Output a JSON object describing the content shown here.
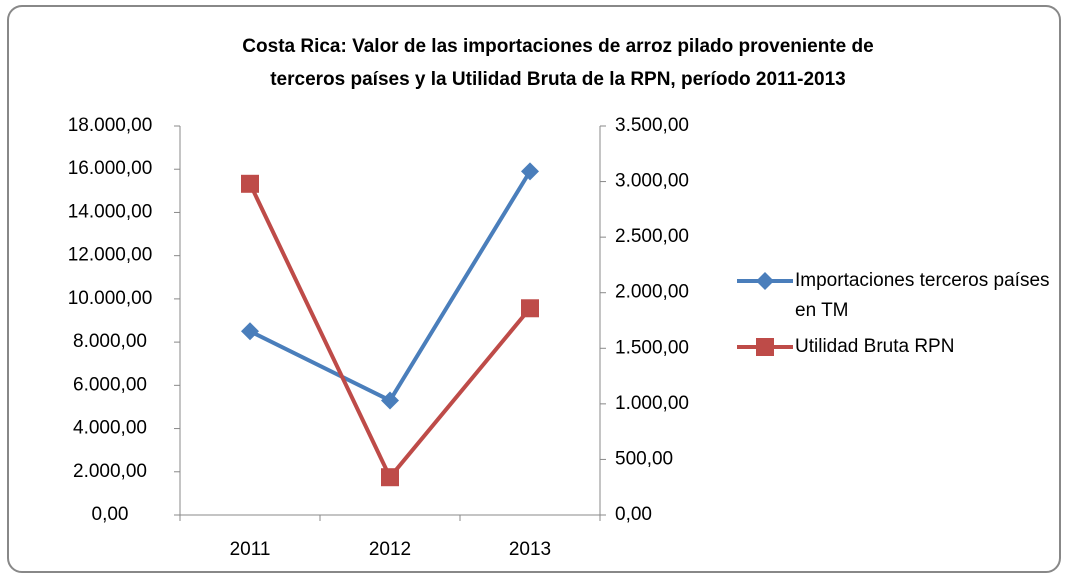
{
  "chart_data": {
    "type": "line",
    "title": [
      "Costa Rica:  Valor de las importaciones de arroz pilado proveniente de",
      "terceros países y la Utilidad Bruta de la RPN, período 2011-2013"
    ],
    "categories": [
      "2011",
      "2012",
      "2013"
    ],
    "series": [
      {
        "name": "Importaciones terceros países en TM",
        "color": "#4a7ebb",
        "marker": "diamond",
        "values": [
          8500,
          5300,
          15900
        ]
      },
      {
        "name": "Utilidad  Bruta RPN",
        "color": "#be4b48",
        "marker": "square",
        "axis": "y2",
        "values": [
          2980,
          340,
          1860
        ]
      }
    ],
    "ylim": [
      0,
      18000
    ],
    "yticks": [
      {
        "value": 0,
        "label": "0,00"
      },
      {
        "value": 2000,
        "label": "2.000,00"
      },
      {
        "value": 4000,
        "label": "4.000,00"
      },
      {
        "value": 6000,
        "label": "6.000,00"
      },
      {
        "value": 8000,
        "label": "8.000,00"
      },
      {
        "value": 10000,
        "label": "10.000,00"
      },
      {
        "value": 12000,
        "label": "12.000,00"
      },
      {
        "value": 14000,
        "label": "14.000,00"
      },
      {
        "value": 16000,
        "label": "16.000,00"
      },
      {
        "value": 18000,
        "label": "18.000,00"
      }
    ],
    "y2lim": [
      0,
      3500
    ],
    "y2ticks": [
      {
        "value": 0,
        "label": "0,00"
      },
      {
        "value": 500,
        "label": "500,00"
      },
      {
        "value": 1000,
        "label": "1.000,00"
      },
      {
        "value": 1500,
        "label": "1.500,00"
      },
      {
        "value": 2000,
        "label": "2.000,00"
      },
      {
        "value": 2500,
        "label": "2.500,00"
      },
      {
        "value": 3000,
        "label": "3.000,00"
      },
      {
        "value": 3500,
        "label": "3.500,00"
      }
    ],
    "legend": "right",
    "grid": false
  }
}
